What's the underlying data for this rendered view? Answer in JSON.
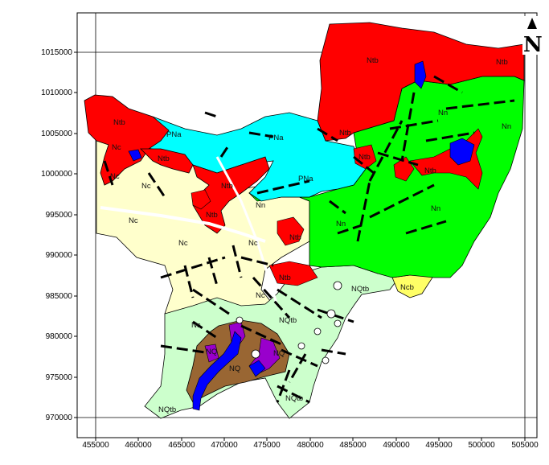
{
  "map": {
    "north_arrow_label": "N",
    "x_ticks": [
      "455000",
      "460000",
      "465000",
      "470000",
      "475000",
      "480000",
      "485000",
      "490000",
      "495000",
      "500000",
      "505000"
    ],
    "y_ticks": [
      "1015000",
      "1010000",
      "1005000",
      "1000000",
      "995000",
      "990000",
      "985000",
      "980000",
      "975000",
      "970000"
    ],
    "colors": {
      "Ntb": "#ff0000",
      "PNa": "#00ffff",
      "Nn": "#00ff00",
      "Nc": "#ffffcc",
      "NQtb": "#ccffcc",
      "NQ": "#996633",
      "Ncb": "#ffff66",
      "water": "#0000ff",
      "purple": "#9900cc",
      "fault": "#000000"
    },
    "unit_labels": [
      {
        "id": "ntb-1",
        "text": "Ntb"
      },
      {
        "id": "ntb-2",
        "text": "Ntb"
      },
      {
        "id": "ntb-3",
        "text": "Ntb"
      },
      {
        "id": "ntb-4",
        "text": "Ntb"
      },
      {
        "id": "ntb-5",
        "text": "Ntb"
      },
      {
        "id": "ntb-6",
        "text": "Ntb"
      },
      {
        "id": "ntb-7",
        "text": "Ntb"
      },
      {
        "id": "ntb-8",
        "text": "Ntb"
      },
      {
        "id": "ntb-9",
        "text": "Ntb"
      },
      {
        "id": "ntb-10",
        "text": "Ntb"
      },
      {
        "id": "ntb-11",
        "text": "Ntb"
      },
      {
        "id": "pna-1",
        "text": "PNa"
      },
      {
        "id": "pna-2",
        "text": "PNa"
      },
      {
        "id": "pna-3",
        "text": "PNa"
      },
      {
        "id": "nn-1",
        "text": "Nn"
      },
      {
        "id": "nn-2",
        "text": "Nn"
      },
      {
        "id": "nn-3",
        "text": "Nn"
      },
      {
        "id": "nn-4",
        "text": "Nn"
      },
      {
        "id": "nn-5",
        "text": "Nn"
      },
      {
        "id": "nc-1",
        "text": "Nc"
      },
      {
        "id": "nc-2",
        "text": "Nc"
      },
      {
        "id": "nc-3",
        "text": "Nc"
      },
      {
        "id": "nc-4",
        "text": "Nc"
      },
      {
        "id": "nc-5",
        "text": "Nc"
      },
      {
        "id": "nc-6",
        "text": "Nc"
      },
      {
        "id": "nc-7",
        "text": "Nc"
      },
      {
        "id": "nc-8",
        "text": "Nc"
      },
      {
        "id": "nqtb-1",
        "text": "NQtb"
      },
      {
        "id": "nqtb-2",
        "text": "NQtb"
      },
      {
        "id": "nqtb-3",
        "text": "NQtb"
      },
      {
        "id": "nqtb-4",
        "text": "NQtb"
      },
      {
        "id": "nq-1",
        "text": "NQ"
      },
      {
        "id": "nq-2",
        "text": "NQ"
      },
      {
        "id": "nq-3",
        "text": "NQ"
      },
      {
        "id": "ncb-1",
        "text": "Ncb"
      }
    ]
  }
}
